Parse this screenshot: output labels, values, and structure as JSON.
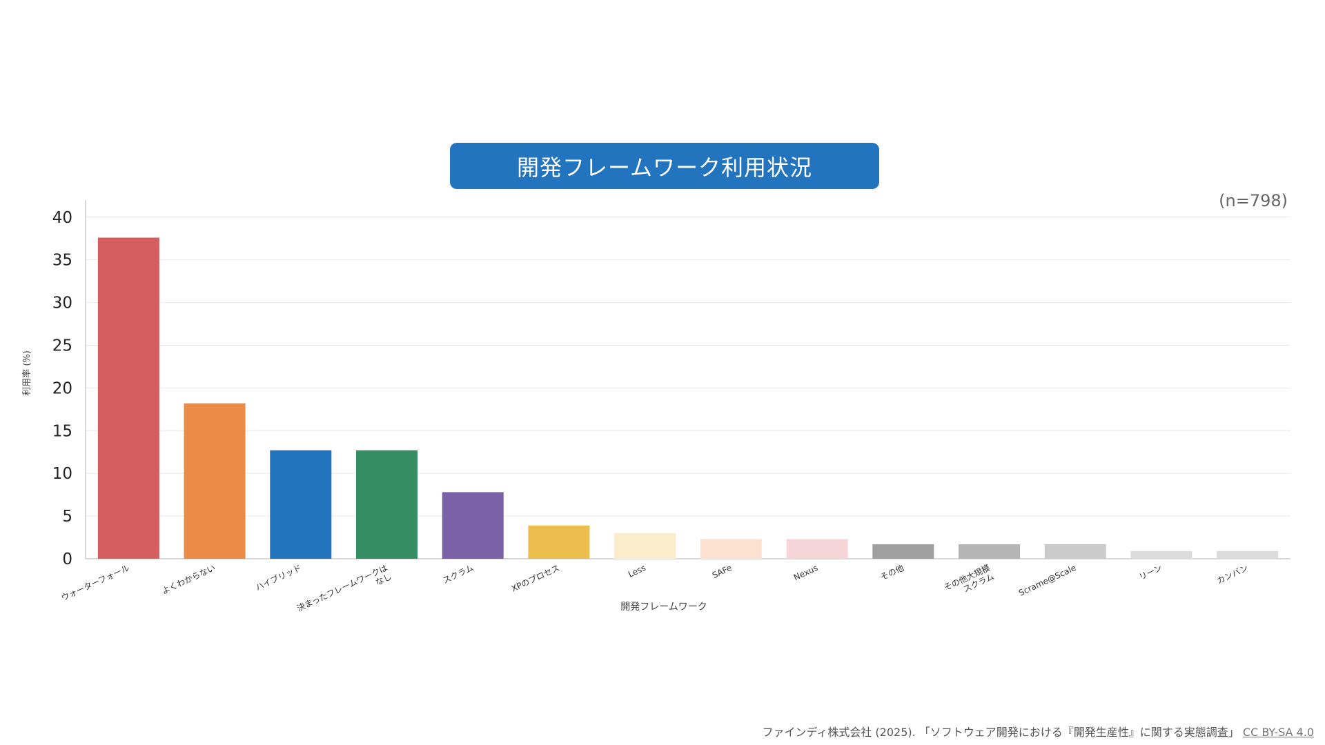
{
  "chart_data": {
    "type": "bar",
    "title": "開発フレームワーク利用状況",
    "sample_note": "(n=798)",
    "xlabel": "開発フレームワーク",
    "ylabel": "利用率 (%)",
    "ylim": [
      0,
      42
    ],
    "yticks": [
      0,
      5,
      10,
      15,
      20,
      25,
      30,
      35,
      40
    ],
    "grid": true,
    "categories": [
      [
        "ウォーターフォール"
      ],
      [
        "よくわからない"
      ],
      [
        "ハイブリッド"
      ],
      [
        "決まったフレームワークは",
        "なし"
      ],
      [
        "スクラム"
      ],
      [
        "XPのプロセス"
      ],
      [
        "Less"
      ],
      [
        "SAFe"
      ],
      [
        "Nexus"
      ],
      [
        "その他"
      ],
      [
        "その他大規模",
        "スクラム"
      ],
      [
        "Scrame@Scale"
      ],
      [
        "リーン"
      ],
      [
        "カンバン"
      ]
    ],
    "values": [
      37.6,
      18.2,
      12.7,
      12.7,
      7.8,
      3.9,
      3.0,
      2.3,
      2.3,
      1.7,
      1.7,
      1.7,
      0.9,
      0.9
    ],
    "colors": [
      "#d45d5e",
      "#ea8b46",
      "#2374be",
      "#348e62",
      "#7b61a8",
      "#ecbe4d",
      "#fbeccc",
      "#fce0d0",
      "#f6d5d8",
      "#a0a0a0",
      "#b5b5b5",
      "#cbcbcb",
      "#dcdcdc",
      "#dcdcdc"
    ]
  },
  "footer": {
    "citation": "ファインディ株式会社 (2025). 「ソフトウェア開発における『開発生産性』に関する実態調査」",
    "license": "CC BY-SA 4.0"
  }
}
